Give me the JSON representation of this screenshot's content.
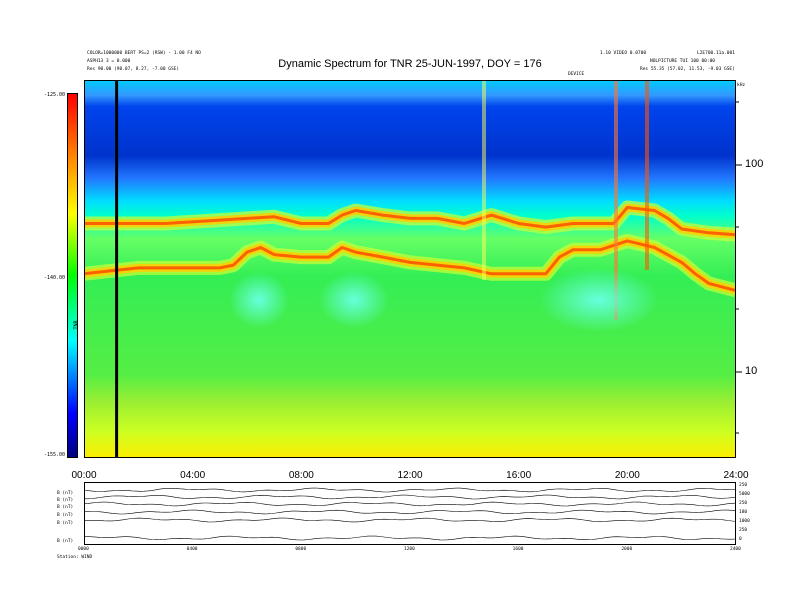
{
  "chart_data": {
    "type": "heatmap",
    "title": "Dynamic Spectrum for TNR 25-JUN-1997, DOY = 176",
    "x_tick_labels": [
      "00:00",
      "04:00",
      "08:00",
      "12:00",
      "16:00",
      "20:00",
      "24:00"
    ],
    "xlim_hours": [
      0,
      24
    ],
    "y_scale": "log",
    "y_unit": "kHz",
    "y_tick_labels": [
      "100",
      "10"
    ],
    "ylim_khz": [
      4,
      250
    ],
    "colorbar": {
      "label": "TNR",
      "tick_labels": [
        "-125.00",
        "-140.00",
        "-155.00"
      ],
      "range": [
        -155,
        -125
      ],
      "colors": [
        "#000080",
        "#0000ff",
        "#00ffff",
        "#00ff00",
        "#ffff00",
        "#ff0000"
      ]
    },
    "emission_bands": [
      {
        "name": "upper band",
        "hours": [
          0,
          1.5,
          3,
          5,
          6,
          7,
          8,
          9,
          9.5,
          10,
          11,
          12,
          13,
          14,
          15,
          16,
          17,
          18,
          19,
          19.5,
          20,
          21,
          21.5,
          22,
          23,
          24
        ],
        "khz": [
          52,
          52,
          52,
          54,
          55,
          56,
          52,
          52,
          57,
          60,
          57,
          55,
          55,
          52,
          57,
          52,
          50,
          52,
          52,
          52,
          62,
          60,
          55,
          49,
          47,
          46
        ]
      },
      {
        "name": "lower band",
        "hours": [
          0,
          1,
          2,
          3,
          4,
          5,
          5.5,
          6,
          6.5,
          7,
          8,
          9,
          9.5,
          10,
          11,
          12,
          13,
          14,
          15,
          16,
          17,
          17.5,
          18,
          19,
          20,
          21,
          22,
          22.5,
          23,
          24
        ],
        "khz": [
          30,
          31,
          32,
          32,
          32,
          32,
          33,
          38,
          40,
          37,
          36,
          36,
          40,
          38,
          36,
          34,
          33,
          32,
          30,
          30,
          30,
          36,
          39,
          39,
          43,
          40,
          34,
          30,
          27,
          25
        ]
      }
    ],
    "markers": [
      {
        "name": "vertical marker",
        "hour": 1.2
      }
    ]
  },
  "header": {
    "top_left_line1": "COLOR=1000000 BERT PS=2 (RSW) - 1.00 F4 NO",
    "top_left_line2": "ASPH13 3 = 0.000",
    "top_left_line3": "Res    90.00 (90.07, 8.27, -7.00 GSE)",
    "top_center": "1.10 VIDEO 0.0700",
    "top_right_line1": "L2E700.11a.001",
    "top_right_line2": "NOLPICTURE TUI 100 00:00",
    "top_right_line3": "Res    55.35 (57.02, 11.53, -9.03 GSE)",
    "mid_label": "DEVICE",
    "unit_label": "kHz"
  },
  "bottom_panel": {
    "row_labels": [
      "B (nT)",
      "B (nT)",
      "B (nT)",
      "B (nT)",
      "B (nT)",
      "B (nT)"
    ],
    "right_ticks": [
      "250",
      "5000",
      "250",
      "180",
      "1000",
      "250",
      "0"
    ],
    "x_tick_labels": [
      "0000",
      "0400",
      "0800",
      "1200",
      "1600",
      "2000",
      "2400"
    ],
    "footer": "Station: WIND"
  }
}
